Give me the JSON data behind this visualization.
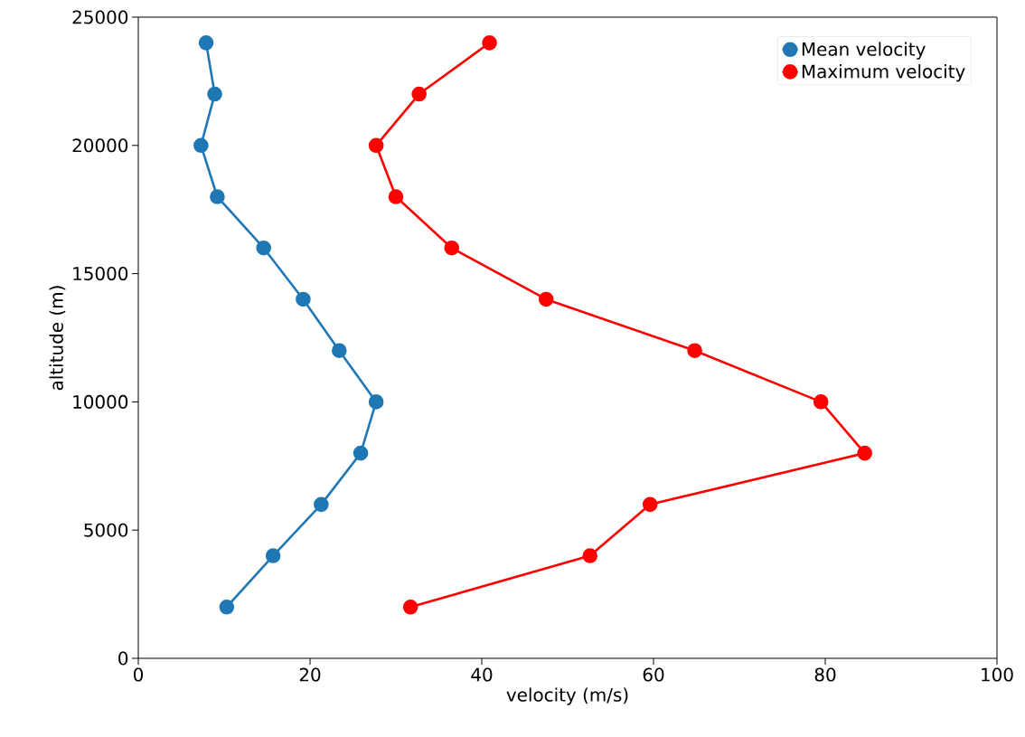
{
  "chart_data": {
    "type": "line",
    "xlabel": "velocity (m/s)",
    "ylabel": "altitude (m)",
    "xlim": [
      0,
      100
    ],
    "xticks": [
      0,
      20,
      40,
      60,
      80,
      100
    ],
    "ylim": [
      0,
      25000
    ],
    "yticks": [
      0,
      5000,
      10000,
      15000,
      20000,
      25000
    ],
    "legend": "top right",
    "marker": "circle",
    "grid": false,
    "series": [
      {
        "name": "Mean velocity",
        "color": "#1f77b4",
        "x": [
          7.9,
          8.9,
          7.3,
          9.2,
          14.6,
          19.2,
          23.4,
          27.7,
          25.9,
          21.3,
          15.7,
          10.3
        ],
        "values": [
          24000,
          22000,
          20000,
          18000,
          16000,
          14000,
          12000,
          10000,
          8000,
          6000,
          4000,
          2000
        ]
      },
      {
        "name": "Maximum velocity",
        "color": "#ff0000",
        "x": [
          40.9,
          32.7,
          27.7,
          30.0,
          36.5,
          47.5,
          64.8,
          79.5,
          84.6,
          59.6,
          52.6,
          31.7
        ],
        "values": [
          24000,
          22000,
          20000,
          18000,
          16000,
          14000,
          12000,
          10000,
          8000,
          6000,
          4000,
          2000
        ]
      }
    ]
  }
}
